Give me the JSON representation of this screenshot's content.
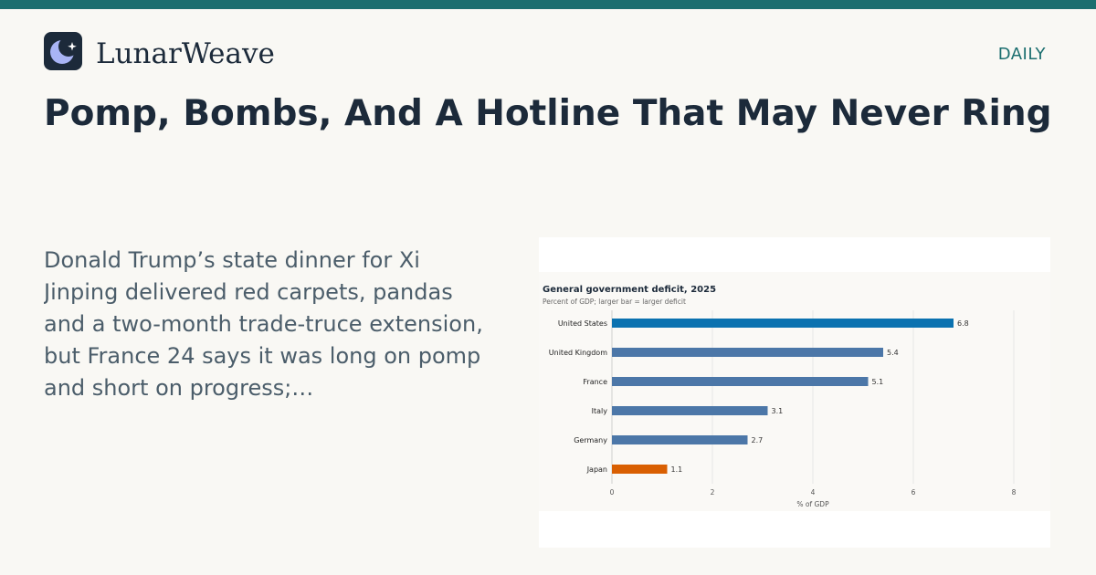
{
  "site": {
    "brand": "LunarWeave",
    "section": "DAILY",
    "logo_icon": "moon-star-icon",
    "accent_color": "#1b6e6f"
  },
  "article": {
    "headline": "Pomp, Bombs, And A Hotline That May Never Ring",
    "summary": "Donald Trump’s state dinner for Xi Jinping delivered red carpets, pandas and a two-month trade-truce extension, but France 24 says it was long on pomp and short on progress;…"
  },
  "chart_data": {
    "type": "bar",
    "orientation": "horizontal",
    "title": "General government deficit, 2025",
    "subtitle": "Percent of GDP; larger bar = larger deficit",
    "xlabel": "% of GDP",
    "ylabel": "",
    "categories": [
      "United States",
      "United Kingdom",
      "France",
      "Italy",
      "Germany",
      "Japan"
    ],
    "values": [
      6.8,
      5.4,
      5.1,
      3.1,
      2.7,
      1.1
    ],
    "value_labels": [
      "6.8",
      "5.4",
      "5.1",
      "3.1",
      "2.7",
      "1.1"
    ],
    "xlim": [
      0,
      8
    ],
    "xticks": [
      0,
      2,
      4,
      6,
      8
    ],
    "grid": true,
    "colors": [
      "#0b72b0",
      "#4c77a8",
      "#4c77a8",
      "#4c77a8",
      "#4c77a8",
      "#d95f02"
    ]
  }
}
